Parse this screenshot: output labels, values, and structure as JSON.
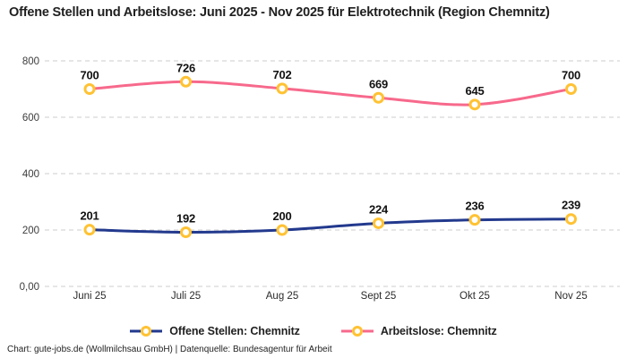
{
  "title": "Offene Stellen und Arbeitslose: Juni 2025 - Nov 2025 für Elektrotechnik (Region Chemnitz)",
  "footer_credit": "Chart: gute-jobs.de (Wollmilchsau GmbH) | Datenquelle: Bundesagentur für Arbeit",
  "chart_data": {
    "type": "line",
    "title": "Offene Stellen und Arbeitslose: Juni 2025 - Nov 2025 für Elektrotechnik (Region Chemnitz)",
    "categories": [
      "Juni 25",
      "Juli 25",
      "Aug 25",
      "Sept 25",
      "Okt 25",
      "Nov 25"
    ],
    "series": [
      {
        "name": "Offene Stellen: Chemnitz",
        "values": [
          201,
          192,
          200,
          224,
          236,
          239
        ],
        "color": "#22398D"
      },
      {
        "name": "Arbeitslose: Chemnitz",
        "values": [
          700,
          726,
          702,
          669,
          645,
          700
        ],
        "color": "#F7698C"
      }
    ],
    "xlabel": "",
    "ylabel": "",
    "ylim": [
      0,
      800
    ],
    "y_tick_labels": [
      "0,00",
      "200",
      "400",
      "600",
      "800"
    ],
    "y_tick_values": [
      0,
      200,
      400,
      600,
      800
    ],
    "grid": "horizontal-dashed",
    "gridline_color": "#cccccc",
    "marker_ring_color": "#FFC233",
    "marker_fill_color": "#ffffff",
    "data_labels": true,
    "legend_position": "bottom"
  }
}
